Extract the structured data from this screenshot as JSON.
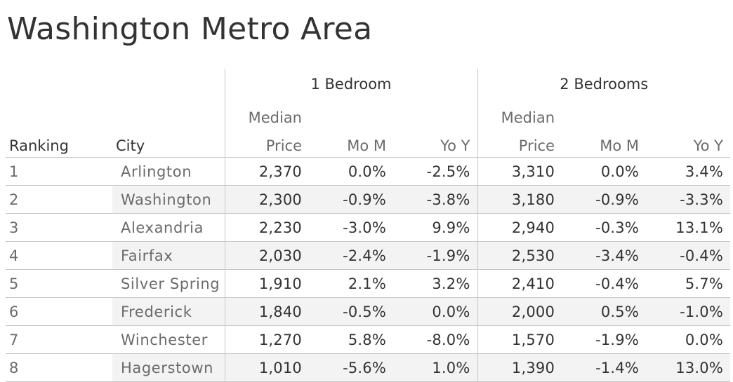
{
  "title": "Washington Metro Area",
  "headers": {
    "ranking": "Ranking",
    "city": "City",
    "group1": "1 Bedroom",
    "group2": "2 Bedrooms",
    "median_top": "Median",
    "median_bottom": "Price",
    "mom": "Mo M",
    "yoy": "Yo Y"
  },
  "chart_data": {
    "type": "table",
    "title": "Washington Metro Area",
    "columns": [
      "Ranking",
      "City",
      "1 Bedroom Median Price",
      "1 Bedroom Mo M",
      "1 Bedroom Yo Y",
      "2 Bedrooms Median Price",
      "2 Bedrooms Mo M",
      "2 Bedrooms Yo Y"
    ],
    "rows": [
      {
        "rank": "1",
        "city": "Arlington",
        "b1_price": "2,370",
        "b1_mom": "0.0%",
        "b1_yoy": "-2.5%",
        "b2_price": "3,310",
        "b2_mom": "0.0%",
        "b2_yoy": "3.4%"
      },
      {
        "rank": "2",
        "city": "Washington",
        "b1_price": "2,300",
        "b1_mom": "-0.9%",
        "b1_yoy": "-3.8%",
        "b2_price": "3,180",
        "b2_mom": "-0.9%",
        "b2_yoy": "-3.3%"
      },
      {
        "rank": "3",
        "city": "Alexandria",
        "b1_price": "2,230",
        "b1_mom": "-3.0%",
        "b1_yoy": "9.9%",
        "b2_price": "2,940",
        "b2_mom": "-0.3%",
        "b2_yoy": "13.1%"
      },
      {
        "rank": "4",
        "city": "Fairfax",
        "b1_price": "2,030",
        "b1_mom": "-2.4%",
        "b1_yoy": "-1.9%",
        "b2_price": "2,530",
        "b2_mom": "-3.4%",
        "b2_yoy": "-0.4%"
      },
      {
        "rank": "5",
        "city": "Silver Spring",
        "b1_price": "1,910",
        "b1_mom": "2.1%",
        "b1_yoy": "3.2%",
        "b2_price": "2,410",
        "b2_mom": "-0.4%",
        "b2_yoy": "5.7%"
      },
      {
        "rank": "6",
        "city": "Frederick",
        "b1_price": "1,840",
        "b1_mom": "-0.5%",
        "b1_yoy": "0.0%",
        "b2_price": "2,000",
        "b2_mom": "0.5%",
        "b2_yoy": "-1.0%"
      },
      {
        "rank": "7",
        "city": "Winchester",
        "b1_price": "1,270",
        "b1_mom": "5.8%",
        "b1_yoy": "-8.0%",
        "b2_price": "1,570",
        "b2_mom": "-1.9%",
        "b2_yoy": "0.0%"
      },
      {
        "rank": "8",
        "city": "Hagerstown",
        "b1_price": "1,010",
        "b1_mom": "-5.6%",
        "b1_yoy": "1.0%",
        "b2_price": "1,390",
        "b2_mom": "-1.4%",
        "b2_yoy": "13.0%"
      }
    ]
  }
}
